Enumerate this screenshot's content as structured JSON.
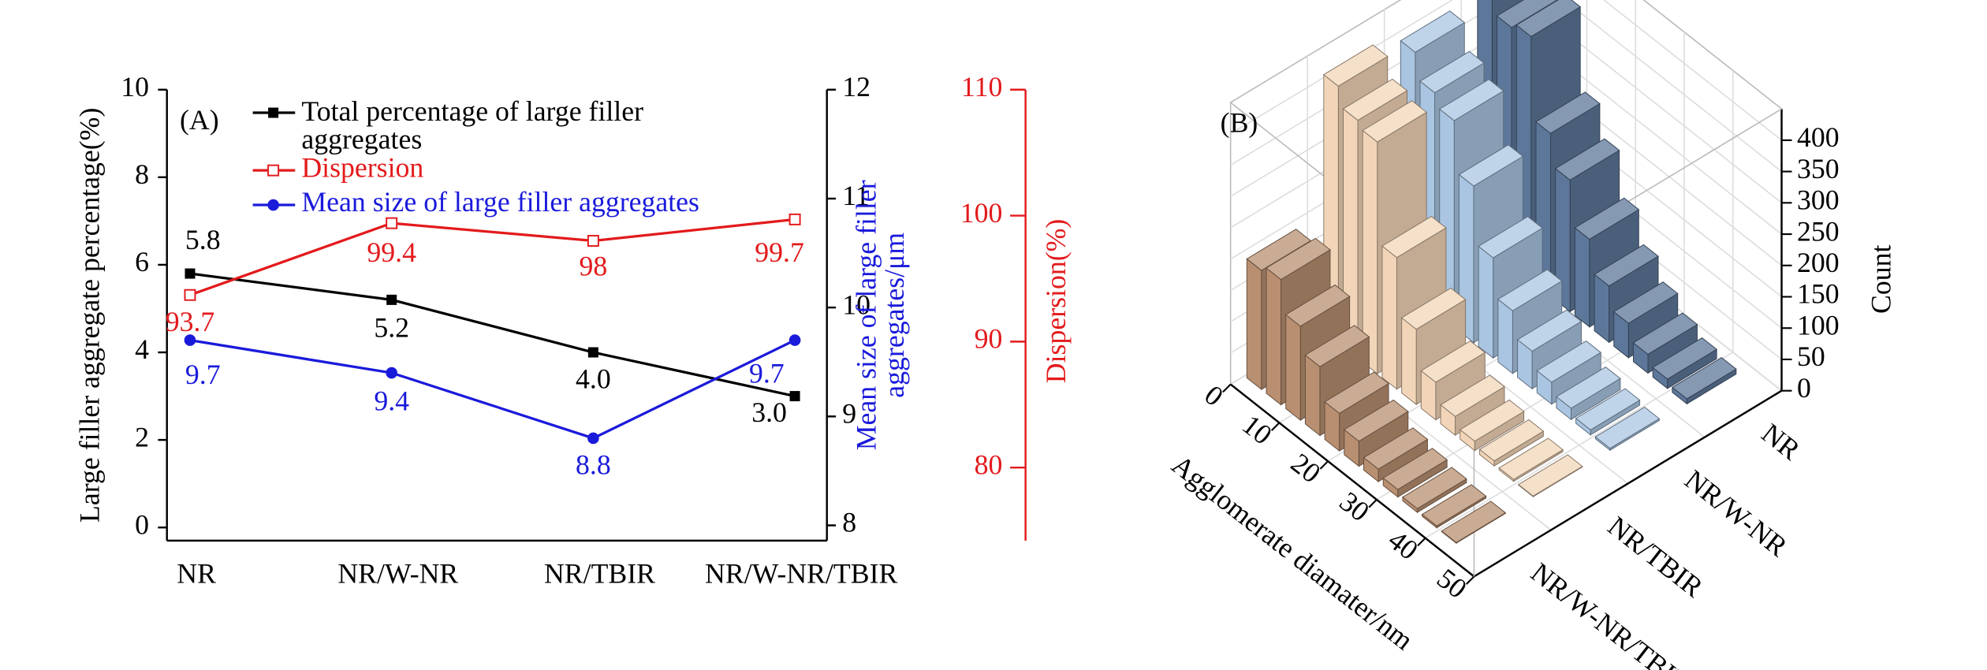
{
  "chart_data": [
    {
      "type": "line",
      "panel_label": "(A)",
      "categories": [
        "NR",
        "NR/W-NR",
        "NR/TBIR",
        "NR/W-NR/TBIR"
      ],
      "series": [
        {
          "name": "Total percentage of large filler aggregates",
          "color": "#000000",
          "marker": "square",
          "values": [
            5.8,
            5.2,
            4.0,
            3.0
          ],
          "value_labels": [
            "5.8",
            "5.2",
            "4.0",
            "3.0"
          ]
        },
        {
          "name": "Dispersion",
          "color": "#e31a1c",
          "marker": "open-square",
          "axis": "y3",
          "values": [
            93.7,
            99.4,
            98.0,
            99.7
          ]
        },
        {
          "name": "Mean size of large filler aggregates",
          "color": "#1a1adb",
          "marker": "circle",
          "axis": "y2",
          "values": [
            9.7,
            9.4,
            8.8,
            9.7
          ]
        }
      ],
      "ylabel": "Large filler aggregate percentage(%)",
      "y2label": "Mean size of large filler aggregates/μm",
      "y3label": "Dispersion(%)",
      "ylim": [
        -0.3,
        10
      ],
      "yticks": [
        0,
        2,
        4,
        6,
        8,
        10
      ],
      "y2lim": [
        7.86,
        12
      ],
      "y2ticks": [
        8,
        9,
        10,
        11,
        12
      ],
      "y3lim": [
        74.2,
        110
      ],
      "y3ticks": [
        80,
        90,
        100,
        110
      ]
    },
    {
      "type": "bar3d",
      "panel_label": "(B)",
      "x": [
        2,
        6,
        10,
        14,
        18,
        22,
        26,
        30,
        34,
        38,
        42
      ],
      "series": [
        {
          "name": "NR",
          "color": "#5c7799",
          "values": [
            430,
            380,
            390,
            260,
            210,
            140,
            90,
            55,
            30,
            15,
            8
          ]
        },
        {
          "name": "NR/W-NR",
          "color": "#a9c5e2",
          "values": [
            390,
            350,
            330,
            250,
            160,
            100,
            60,
            35,
            18,
            8,
            3
          ]
        },
        {
          "name": "NR/TBIR",
          "color": "#f2d5b8",
          "values": [
            410,
            380,
            370,
            210,
            120,
            60,
            30,
            15,
            8,
            3,
            1
          ]
        },
        {
          "name": "NR/W-NR/TBIR",
          "color": "#b88f70",
          "values": [
            190,
            200,
            150,
            110,
            60,
            40,
            20,
            12,
            6,
            3,
            1
          ]
        }
      ],
      "xlabel": "Agglomerate diamater/nm",
      "zlabel": "Count",
      "xlim": [
        0,
        50
      ],
      "xticks": [
        0,
        10,
        20,
        30,
        40,
        50
      ],
      "zlim": [
        0,
        450
      ],
      "zticks": [
        0,
        50,
        100,
        150,
        200,
        250,
        300,
        350,
        400
      ]
    }
  ]
}
